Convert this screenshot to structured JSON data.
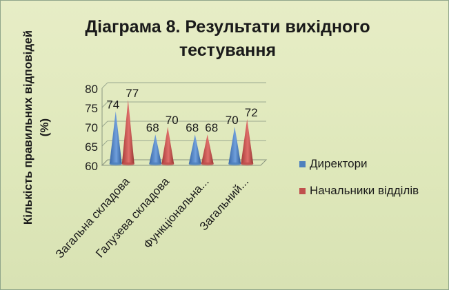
{
  "chart_data": {
    "type": "bar",
    "style": "3d-cone",
    "title": "Діаграма 8. Результати вихідного тестування",
    "ylabel": "Кількість правильних відповідей (%)",
    "xlabel": "",
    "ylim": [
      60,
      80
    ],
    "yticks": [
      60,
      65,
      70,
      75,
      80
    ],
    "categories": [
      "Загальна складова",
      "Галузева складова",
      "Функціональна...",
      "Загальний..."
    ],
    "series": [
      {
        "name": "Директори",
        "values": [
          74,
          68,
          68,
          70
        ],
        "color": "#4f81bd"
      },
      {
        "name": "Начальники відділів",
        "values": [
          77,
          70,
          68,
          72
        ],
        "color": "#c0504d"
      }
    ],
    "grid": true,
    "legend": "right"
  }
}
